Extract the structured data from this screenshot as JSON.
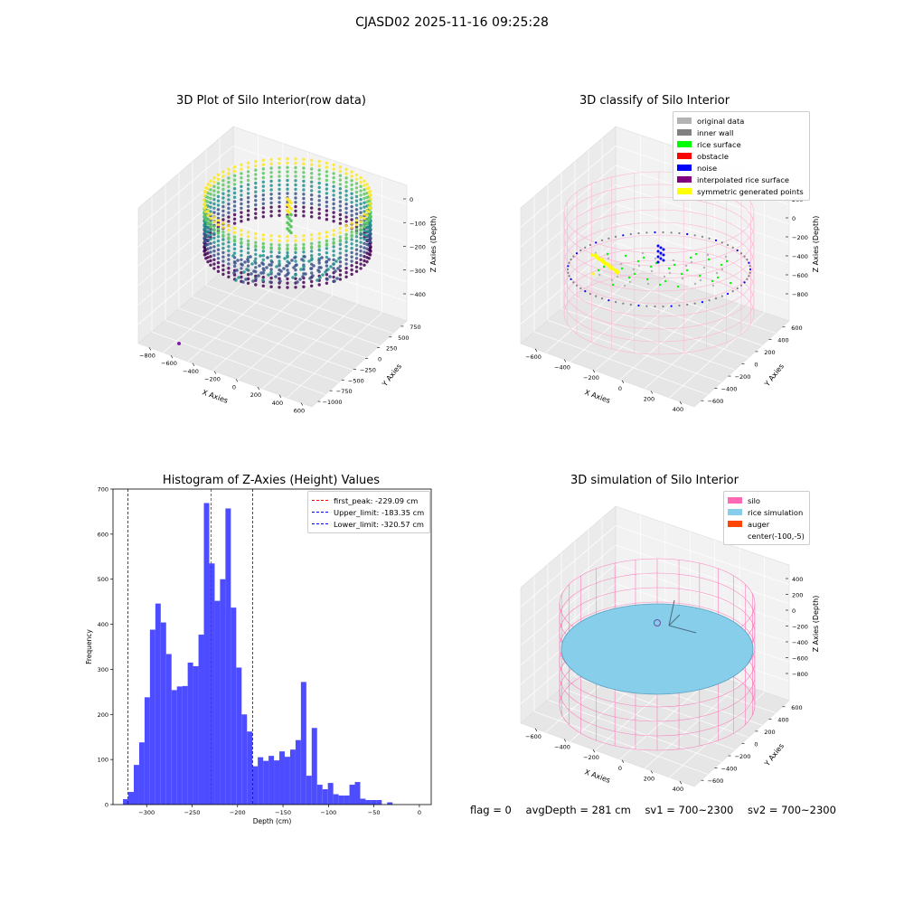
{
  "suptitle": "CJASD02 2025-11-16 09:25:28",
  "footer": {
    "flag": "flag = 0",
    "avg_depth": "avgDepth = 281 cm",
    "sv1": "sv1 = 700~2300",
    "sv2": "sv2 = 700~2300"
  },
  "chart_data": [
    {
      "type": "scatter",
      "projection": "3d",
      "title": "3D Plot of Silo Interior(row data)",
      "xlabel": "X Axies",
      "ylabel": "Y Axies",
      "zlabel": "Z Axies (Depth)",
      "x_ticks": [
        "−800",
        "−600",
        "−400",
        "−200",
        "0",
        "200",
        "400",
        "600"
      ],
      "y_ticks": [
        "−1000",
        "−750",
        "−500",
        "−250",
        "0",
        "250",
        "500",
        "750"
      ],
      "z_ticks": [
        "−400",
        "−300",
        "−200",
        "−100",
        "0"
      ],
      "colormap": "viridis",
      "description_points": "ring of points around silo wall, z from about −420 to −100; one outlier point near x=−600, y=−1000"
    },
    {
      "type": "scatter",
      "projection": "3d",
      "title": "3D classify of Silo Interior",
      "xlabel": "X Axies",
      "ylabel": "Y Axies",
      "zlabel": "Z Axies (Depth)",
      "x_ticks": [
        "−600",
        "−400",
        "−200",
        "0",
        "200",
        "400"
      ],
      "y_ticks": [
        "−600",
        "−400",
        "−200",
        "0",
        "200",
        "400",
        "600"
      ],
      "z_ticks": [
        "−800",
        "−600",
        "−400",
        "−200",
        "0",
        "200"
      ],
      "legend": [
        {
          "label": "original data",
          "color": "#b3b3b3"
        },
        {
          "label": "inner wall",
          "color": "#808080"
        },
        {
          "label": "rice surface",
          "color": "#00ff00"
        },
        {
          "label": "obstacle",
          "color": "#ff0000"
        },
        {
          "label": "noise",
          "color": "#0000ff"
        },
        {
          "label": "interpolated rice surface",
          "color": "#800080"
        },
        {
          "label": "symmetric generated points",
          "color": "#ffff00"
        }
      ],
      "wireframe_color": "#ffb6d5"
    },
    {
      "type": "bar",
      "title": "Histogram of Z-Axies (Height) Values",
      "xlabel": "Depth (cm)",
      "ylabel": "Frequency",
      "bar_color": "#4d4dff",
      "xlim": [
        -337,
        13
      ],
      "ylim": [
        0,
        700
      ],
      "x_ticks": [
        -300,
        -250,
        -200,
        -150,
        -100,
        -50,
        0
      ],
      "x_tick_labels": [
        "−300",
        "−250",
        "−200",
        "−150",
        "−100",
        "−50",
        "0"
      ],
      "y_ticks": [
        0,
        100,
        200,
        300,
        400,
        500,
        600,
        700
      ],
      "y_tick_labels": [
        "0",
        "100",
        "200",
        "300",
        "400",
        "500",
        "600",
        "700"
      ],
      "bin_start": -326,
      "bin_width": 5.93,
      "values": [
        12,
        28,
        88,
        138,
        238,
        388,
        446,
        404,
        334,
        254,
        262,
        263,
        315,
        307,
        377,
        669,
        535,
        452,
        500,
        657,
        437,
        304,
        200,
        162,
        85,
        105,
        97,
        108,
        98,
        118,
        106,
        122,
        143,
        272,
        64,
        170,
        44,
        34,
        48,
        23,
        20,
        20,
        44,
        50,
        13,
        10,
        10,
        10,
        0,
        5
      ],
      "vlines": [
        {
          "label": "first_peak: -229.09 cm",
          "x": -229.09,
          "color": "#ff0000"
        },
        {
          "label": "Upper_limit: -183.35 cm",
          "x": -183.35,
          "color": "#0000ff"
        },
        {
          "label": "Lower_limit: -320.57 cm",
          "x": -320.57,
          "color": "#0000ff"
        }
      ],
      "legend_position": "upper right"
    },
    {
      "type": "scatter",
      "projection": "3d",
      "title": "3D simulation of Silo Interior",
      "xlabel": "X Axies",
      "ylabel": "Y Axies",
      "zlabel": "Z Axies (Depth)",
      "x_ticks": [
        "−600",
        "−400",
        "−200",
        "0",
        "200",
        "400"
      ],
      "y_ticks": [
        "−600",
        "−400",
        "−200",
        "0",
        "200",
        "400",
        "600"
      ],
      "z_ticks": [
        "−800",
        "−600",
        "−400",
        "−200",
        "0",
        "200",
        "400"
      ],
      "legend": [
        {
          "label": "silo",
          "color": "#ff69b4"
        },
        {
          "label": "rice simulation",
          "color": "#87ceeb"
        },
        {
          "label": "auger",
          "color": "#ff4500"
        },
        {
          "label": "center(-100,-5)",
          "color": "none"
        }
      ]
    }
  ]
}
